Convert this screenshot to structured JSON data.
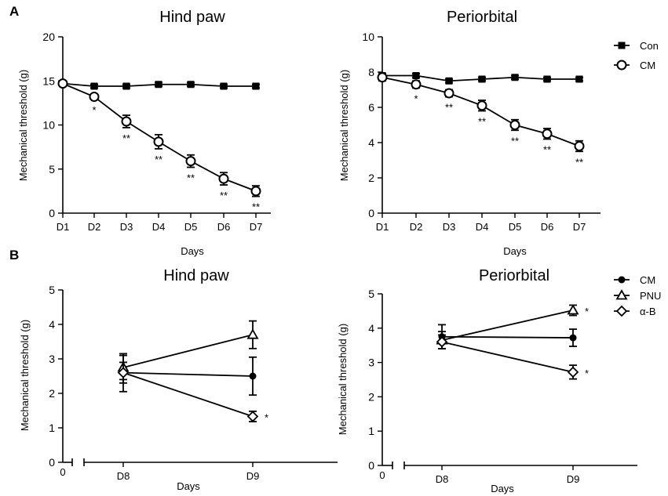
{
  "chart_data": [
    {
      "panel_label": "A",
      "type": "line",
      "title": "Hind paw",
      "xlabel": "Days",
      "ylabel": "Mechanical threshold (g)",
      "x": [
        "D1",
        "D2",
        "D3",
        "D4",
        "D5",
        "D6",
        "D7"
      ],
      "ylim": [
        0,
        20
      ],
      "yticks": [
        0,
        5,
        10,
        15,
        20
      ],
      "series": [
        {
          "name": "Con",
          "marker": "square-filled",
          "values": [
            14.7,
            14.4,
            14.4,
            14.6,
            14.6,
            14.4,
            14.4
          ],
          "errors": [
            0.2,
            0.2,
            0.2,
            0.2,
            0.2,
            0.2,
            0.2
          ],
          "sig": [
            "",
            "",
            "",
            "",
            "",
            "",
            ""
          ]
        },
        {
          "name": "CM",
          "marker": "circle-open",
          "values": [
            14.7,
            13.2,
            10.4,
            8.1,
            5.9,
            3.9,
            2.5
          ],
          "errors": [
            0.3,
            0.3,
            0.7,
            0.8,
            0.7,
            0.7,
            0.6
          ],
          "sig": [
            "",
            "*",
            "**",
            "**",
            "**",
            "**",
            "**"
          ]
        }
      ]
    },
    {
      "panel_label": "",
      "type": "line",
      "title": "Periorbital",
      "xlabel": "Days",
      "ylabel": "Mechanical threshold (g)",
      "x": [
        "D1",
        "D2",
        "D3",
        "D4",
        "D5",
        "D6",
        "D7"
      ],
      "ylim": [
        0,
        10
      ],
      "yticks": [
        0,
        2,
        4,
        6,
        8,
        10
      ],
      "legend": [
        "Con",
        "CM"
      ],
      "series": [
        {
          "name": "Con",
          "marker": "square-filled",
          "values": [
            7.8,
            7.8,
            7.5,
            7.6,
            7.7,
            7.6,
            7.6
          ],
          "errors": [
            0.1,
            0.1,
            0.1,
            0.1,
            0.1,
            0.1,
            0.1
          ],
          "sig": [
            "",
            "",
            "",
            "",
            "",
            "",
            ""
          ]
        },
        {
          "name": "CM",
          "marker": "circle-open",
          "values": [
            7.7,
            7.3,
            6.8,
            6.1,
            5.0,
            4.5,
            3.8
          ],
          "errors": [
            0.2,
            0.2,
            0.2,
            0.3,
            0.3,
            0.3,
            0.3
          ],
          "sig": [
            "",
            "*",
            "**",
            "**",
            "**",
            "**",
            "**"
          ]
        }
      ]
    },
    {
      "panel_label": "B",
      "type": "line",
      "title": "Hind paw",
      "xlabel": "Days",
      "ylabel": "Mechanical threshold (g)",
      "x": [
        "D8",
        "D9"
      ],
      "zero_label": "0",
      "ylim": [
        0,
        5
      ],
      "yticks": [
        0,
        1,
        2,
        3,
        4,
        5
      ],
      "series": [
        {
          "name": "CM",
          "marker": "circle-filled",
          "values": [
            2.6,
            2.5
          ],
          "errors": [
            0.55,
            0.55
          ],
          "sig": [
            "",
            ""
          ]
        },
        {
          "name": "PNU",
          "marker": "triangle-open",
          "values": [
            2.75,
            3.7
          ],
          "errors": [
            0.35,
            0.4
          ],
          "sig": [
            "",
            ""
          ]
        },
        {
          "name": "α-B",
          "marker": "diamond-open",
          "values": [
            2.6,
            1.33
          ],
          "errors": [
            0.3,
            0.15
          ],
          "sig": [
            "",
            "*"
          ]
        }
      ]
    },
    {
      "panel_label": "",
      "type": "line",
      "title": "Periorbital",
      "xlabel": "Days",
      "ylabel": "Mechanical threshold (g)",
      "x": [
        "D8",
        "D9"
      ],
      "zero_label": "0",
      "ylim": [
        0,
        5
      ],
      "yticks": [
        0,
        1,
        2,
        3,
        4,
        5
      ],
      "legend": [
        "CM",
        "PNU",
        "α-B"
      ],
      "series": [
        {
          "name": "CM",
          "marker": "circle-filled",
          "values": [
            3.75,
            3.72
          ],
          "errors": [
            0.35,
            0.25
          ],
          "sig": [
            "",
            ""
          ]
        },
        {
          "name": "PNU",
          "marker": "triangle-open",
          "values": [
            3.65,
            4.52
          ],
          "errors": [
            0.25,
            0.15
          ],
          "sig": [
            "",
            "*"
          ]
        },
        {
          "name": "α-B",
          "marker": "diamond-open",
          "values": [
            3.6,
            2.72
          ],
          "errors": [
            0.2,
            0.2
          ],
          "sig": [
            "",
            "*"
          ]
        }
      ]
    }
  ]
}
